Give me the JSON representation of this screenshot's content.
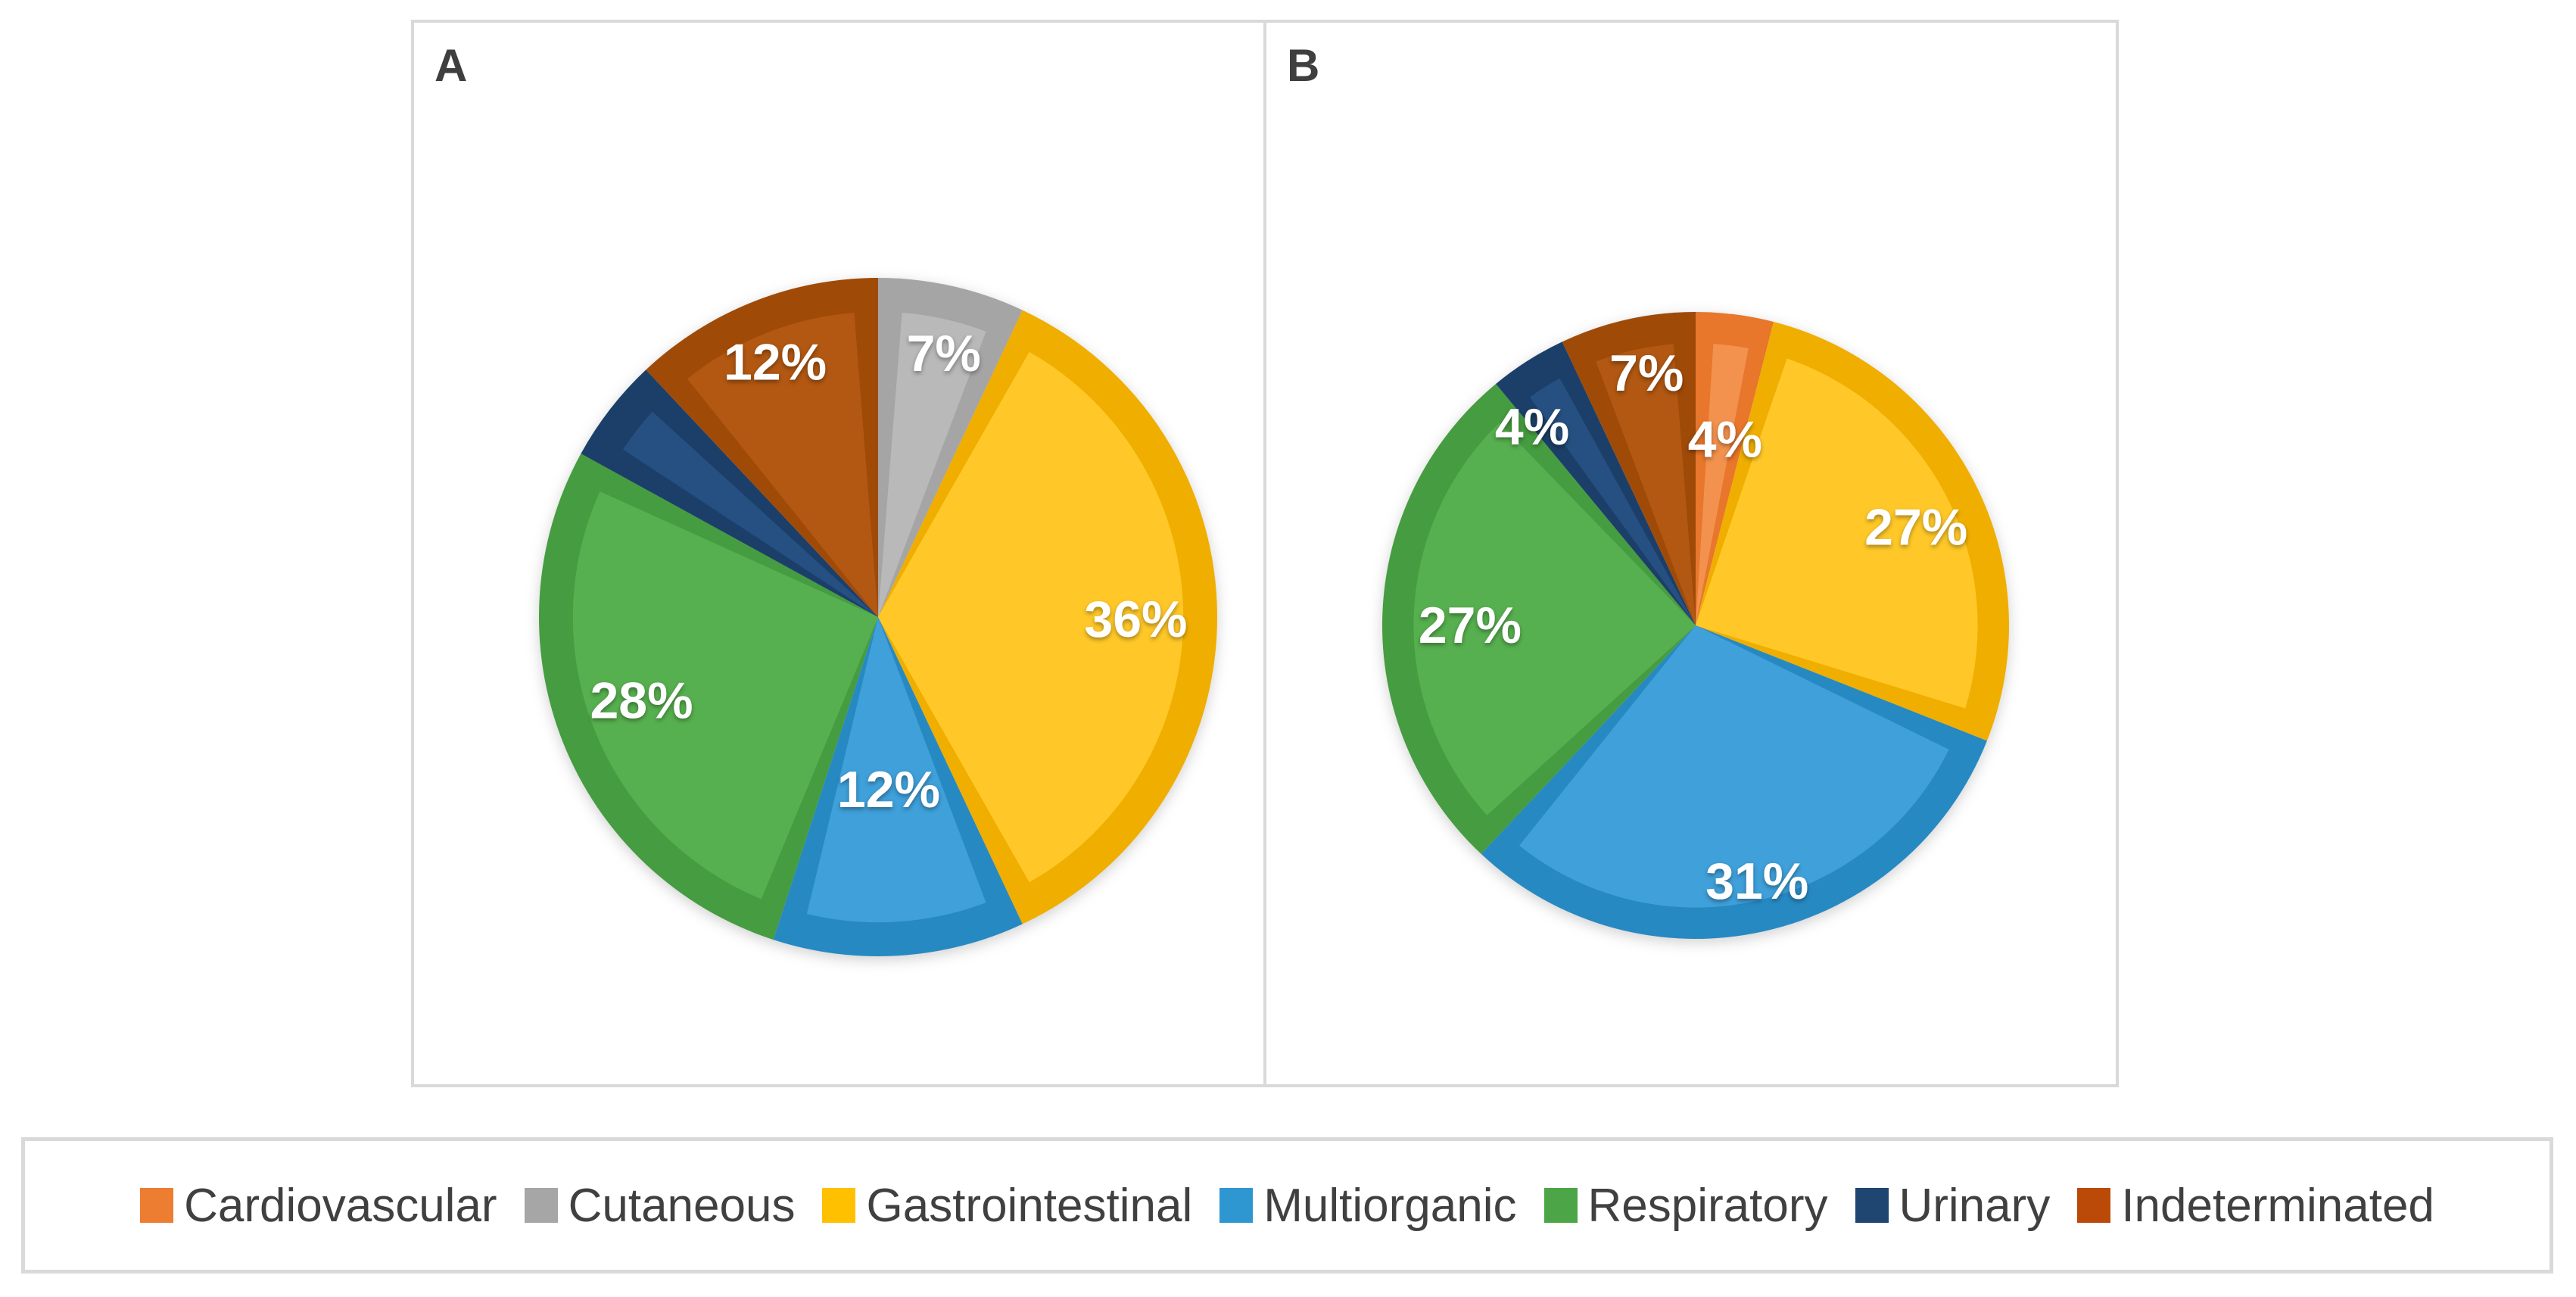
{
  "figure": {
    "panels": [
      {
        "label": "A"
      },
      {
        "label": "B"
      }
    ]
  },
  "palette": [
    {
      "name": "Cardiovascular",
      "color": "#ED7D31",
      "rim": "#E8762B",
      "hi": "#F2924E"
    },
    {
      "name": "Cutaneous",
      "color": "#A6A6A6",
      "rim": "#A5A5A5",
      "hi": "#B9B9B9"
    },
    {
      "name": "Gastrointestinal",
      "color": "#FFC000",
      "rim": "#EFAE00",
      "hi": "#FFC828"
    },
    {
      "name": "Multiorganic",
      "color": "#2E96D1",
      "rim": "#2789C2",
      "hi": "#3FA0DA"
    },
    {
      "name": "Respiratory",
      "color": "#4CA546",
      "rim": "#469C40",
      "hi": "#57B04F"
    },
    {
      "name": "Urinary",
      "color": "#1F4571",
      "rim": "#1B3F68",
      "hi": "#265081"
    },
    {
      "name": "Indeterminated",
      "color": "#BB4A08",
      "rim": "#A04A08",
      "hi": "#B25812"
    }
  ],
  "legend": {
    "items": [
      "Cardiovascular",
      "Cutaneous",
      "Gastrointestinal",
      "Multiorganic",
      "Respiratory",
      "Urinary",
      "Indeterminated"
    ]
  },
  "chart_data": [
    {
      "type": "pie",
      "panel": "A",
      "title": "A",
      "legend_position": "bottom",
      "direction": "clockwise",
      "start_angle_deg": 0,
      "categories": [
        "Cardiovascular",
        "Cutaneous",
        "Gastrointestinal",
        "Multiorganic",
        "Respiratory",
        "Urinary",
        "Indeterminated"
      ],
      "values": [
        0,
        7,
        36,
        12,
        28,
        5,
        12
      ],
      "labels": [
        "",
        "7%",
        "36%",
        "12%",
        "28%",
        "",
        "12%"
      ],
      "label_angle_deg": [
        null,
        14,
        90.5,
        176.5,
        250.5,
        null,
        338
      ],
      "label_radius_frac": [
        null,
        0.8,
        0.76,
        0.51,
        0.74,
        null,
        0.81
      ]
    },
    {
      "type": "pie",
      "panel": "B",
      "title": "B",
      "legend_position": "bottom",
      "direction": "clockwise",
      "start_angle_deg": 0,
      "categories": [
        "Cardiovascular",
        "Cutaneous",
        "Gastrointestinal",
        "Multiorganic",
        "Respiratory",
        "Urinary",
        "Indeterminated"
      ],
      "values": [
        4,
        0,
        27,
        31,
        27,
        4,
        7
      ],
      "labels": [
        "4%",
        "",
        "27%",
        "31%",
        "27%",
        "4%",
        "7%"
      ],
      "label_angle_deg": [
        9,
        null,
        66,
        166.5,
        270,
        320.5,
        349
      ],
      "label_radius_frac": [
        0.6,
        null,
        0.77,
        0.84,
        0.72,
        0.82,
        0.82
      ]
    }
  ]
}
